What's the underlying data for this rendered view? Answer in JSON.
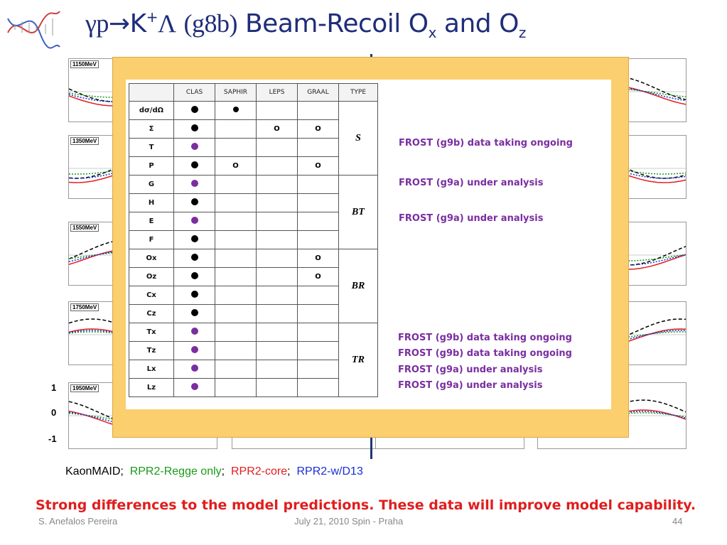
{
  "title": {
    "gamma": "γp",
    "arrow": "→",
    "kaon": "K",
    "kaon_charge": "+",
    "lambda": "Λ",
    "run": "(g8b)",
    "text": "Beam-Recoil O",
    "sub_x": "x",
    "and": "and O",
    "sub_z": "z"
  },
  "plot_energies": [
    "1150MeV",
    "1350MeV",
    "1550MeV",
    "1750MeV",
    "1950MeV"
  ],
  "y_axis_labels": [
    "1",
    "0",
    "-1"
  ],
  "table": {
    "headers": [
      "",
      "CLAS",
      "SAPHIR",
      "LEPS",
      "GRAAL",
      "TYPE"
    ],
    "rows": [
      {
        "name": "dσ/dΩ",
        "clas": "black",
        "saphir": "black-small",
        "leps": "",
        "graal": ""
      },
      {
        "name": "Σ",
        "clas": "black",
        "saphir": "",
        "leps": "O",
        "graal": "O"
      },
      {
        "name": "T",
        "clas": "purple",
        "saphir": "",
        "leps": "",
        "graal": ""
      },
      {
        "name": "P",
        "clas": "black",
        "saphir": "O",
        "leps": "",
        "graal": "O"
      },
      {
        "name": "G",
        "clas": "purple",
        "saphir": "",
        "leps": "",
        "graal": ""
      },
      {
        "name": "H",
        "clas": "black",
        "saphir": "",
        "leps": "",
        "graal": ""
      },
      {
        "name": "E",
        "clas": "purple",
        "saphir": "",
        "leps": "",
        "graal": ""
      },
      {
        "name": "F",
        "clas": "black",
        "saphir": "",
        "leps": "",
        "graal": ""
      },
      {
        "name": "Ox",
        "clas": "black",
        "saphir": "",
        "leps": "",
        "graal": "O"
      },
      {
        "name": "Oz",
        "clas": "black",
        "saphir": "",
        "leps": "",
        "graal": "O"
      },
      {
        "name": "Cx",
        "clas": "black",
        "saphir": "",
        "leps": "",
        "graal": ""
      },
      {
        "name": "Cz",
        "clas": "black",
        "saphir": "",
        "leps": "",
        "graal": ""
      },
      {
        "name": "Tx",
        "clas": "purple",
        "saphir": "",
        "leps": "",
        "graal": ""
      },
      {
        "name": "Tz",
        "clas": "purple",
        "saphir": "",
        "leps": "",
        "graal": ""
      },
      {
        "name": "Lx",
        "clas": "purple",
        "saphir": "",
        "leps": "",
        "graal": ""
      },
      {
        "name": "Lz",
        "clas": "purple",
        "saphir": "",
        "leps": "",
        "graal": ""
      }
    ],
    "types": [
      "S",
      "BT",
      "BR",
      "TR"
    ]
  },
  "notes": {
    "t": "FROST (g9b) data taking ongoing",
    "g": "FROST (g9a) under analysis",
    "e": "FROST (g9a) under analysis",
    "tx": "FROST (g9b) data taking ongoing",
    "tz": "FROST (g9b) data taking ongoing",
    "lx": "FROST (g9a) under analysis",
    "lz": "FROST (g9a) under analysis"
  },
  "legend": {
    "kaonmaid": "KaonMAID;",
    "regge": "RPR2-Regge only",
    "core": "RPR2-core",
    "d13": "RPR2-w/D13",
    "sep": ";"
  },
  "colors": {
    "title": "#1f2d7a",
    "regge": "#1a9a1a",
    "core": "#e01e1e",
    "d13": "#1a2ed0",
    "purple": "#7a2ea0",
    "overlay": "#fbce6e"
  },
  "conclusion": "Strong differences to the model predictions. These data will improve model capability.",
  "footer": {
    "author": "S. Anefalos Pereira",
    "date": "July 21, 2010 Spin - Praha",
    "page": "44"
  }
}
